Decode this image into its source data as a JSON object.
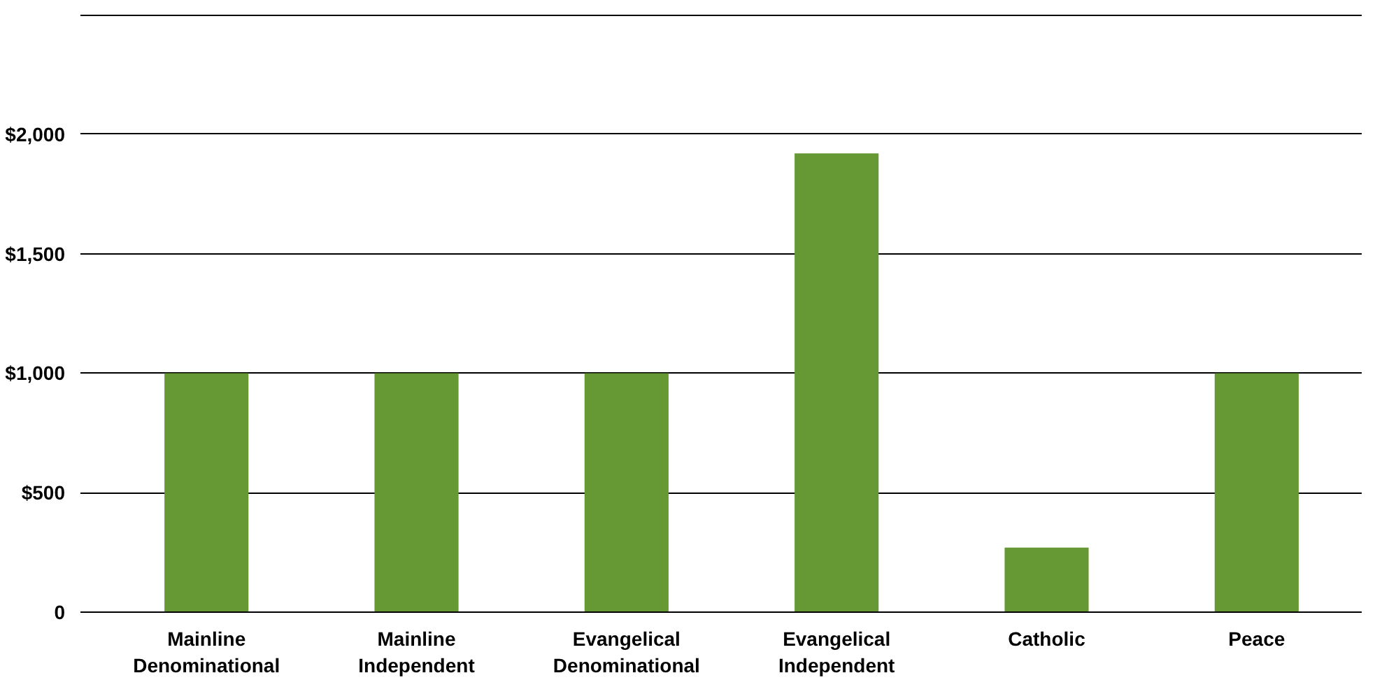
{
  "chart_data": {
    "type": "bar",
    "categories": [
      "Mainline\nDenominational",
      "Mainline\nIndependent",
      "Evangelical\nDenominational",
      "Evangelical\nIndependent",
      "Catholic",
      "Peace"
    ],
    "values": [
      1000,
      1000,
      1000,
      1920,
      270,
      1000
    ],
    "color": "#669933",
    "ylim": [
      0,
      2500
    ],
    "yticks": [
      {
        "value": 0,
        "label": "0"
      },
      {
        "value": 500,
        "label": "$500"
      },
      {
        "value": 1000,
        "label": "$1,000"
      },
      {
        "value": 1500,
        "label": "$1,500"
      },
      {
        "value": 2000,
        "label": "$2,000"
      },
      {
        "value": 2500,
        "label": null
      }
    ],
    "grid": "y"
  }
}
